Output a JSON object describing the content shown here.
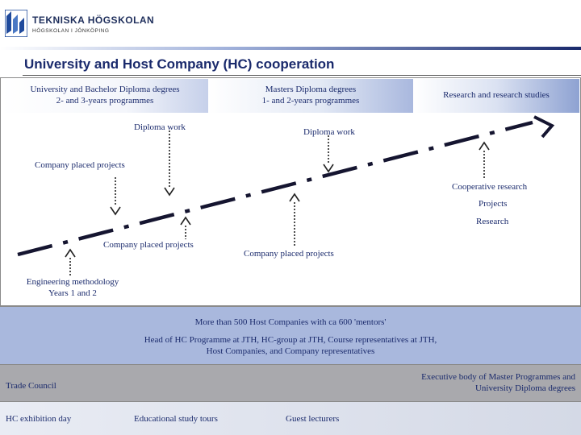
{
  "logo": {
    "name": "TEKNISKA HÖGSKOLAN",
    "sub": "HÖGSKOLAN I JÖNKÖPING"
  },
  "title": "University and Host Company (HC) cooperation",
  "columns": {
    "bachelor": {
      "line1": "University and Bachelor Diploma degrees",
      "line2": "2- and 3-years programmes"
    },
    "masters": {
      "line1": "Masters Diploma degrees",
      "line2": "1- and 2-years programmes"
    },
    "research": {
      "label": "Research and research studies"
    }
  },
  "labels": {
    "diploma_work_1": "Diploma work",
    "diploma_work_2": "Diploma work",
    "company_projects_top": "Company placed projects",
    "cooperative": "Cooperative research",
    "projects": "Projects",
    "research": "Research",
    "company_projects_left": "Company placed projects",
    "company_projects_mid": "Company placed projects",
    "engineering_line1": "Engineering methodology",
    "engineering_line2": "Years 1 and 2"
  },
  "bands": {
    "mentors": "More than 500 Host Companies with ca 600 'mentors'",
    "head_line1": "Head of HC Programme at JTH, HC-group at JTH, Course representatives at JTH,",
    "head_line2": "Host Companies, and Company representatives",
    "trade_council": "Trade Council",
    "executive_line1": "Executive body of Master Programmes and",
    "executive_line2": "University Diploma degrees",
    "exhibition": "HC exhibition day",
    "tours": "Educational study tours",
    "lecturers": "Guest lecturers"
  },
  "colors": {
    "navy": "#1a2a6c",
    "accent_line": "#2c3e8c",
    "logo_blue": "#1f4a9c"
  }
}
